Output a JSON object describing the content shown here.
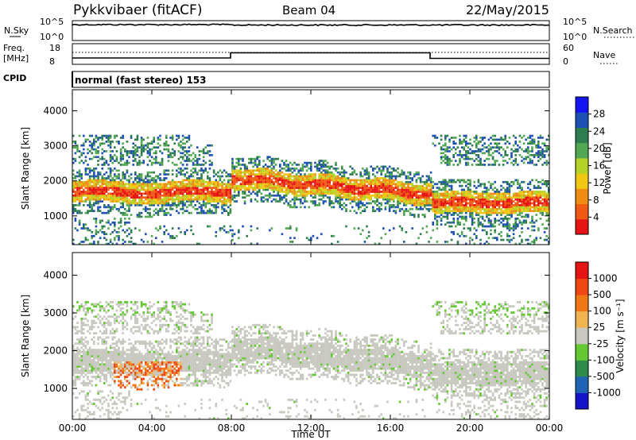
{
  "header": {
    "station": "Pykkvibaer (fitACF)",
    "beam": "Beam 04",
    "date": "22/May/2015"
  },
  "noise_panel": {
    "left_label": "N.Sky",
    "right_label": "N.Search",
    "ticks": [
      "10^5",
      "10^0"
    ],
    "right_ticks": [
      "10^5",
      "10^0"
    ]
  },
  "freq_panel": {
    "left_label_1": "Freq.",
    "left_label_2": "[MHz]",
    "left_ticks": [
      "18",
      "8"
    ],
    "right_label": "Nave",
    "right_ticks": [
      "60",
      "0"
    ]
  },
  "cpid": {
    "label": "CPID",
    "value": "normal (fast stereo) 153"
  },
  "colors": {
    "power": [
      "#1414f0",
      "#1e50b4",
      "#2e7d4f",
      "#52a852",
      "#b4d228",
      "#f0c814",
      "#f08c14",
      "#f05a14",
      "#e61414"
    ],
    "velocity": [
      "#1414c8",
      "#1e64b4",
      "#2d8a4a",
      "#64c832",
      "#c8c8c0",
      "#f0b450",
      "#f07814",
      "#f04614",
      "#e61414"
    ]
  },
  "chart_data": [
    {
      "type": "heatmap",
      "name": "power",
      "ylabel": "Slant Range [km]",
      "yticks": [
        "4000",
        "3000",
        "2000",
        "1000"
      ],
      "ylim": [
        180,
        4600
      ],
      "xlim": [
        "00:00",
        "24:00"
      ],
      "colorbar": {
        "label": "Power [dB]",
        "ticks": [
          "28",
          "24",
          "20",
          "16",
          "12",
          "8",
          "4"
        ],
        "range": [
          0,
          32
        ]
      }
    },
    {
      "type": "heatmap",
      "name": "velocity",
      "xlabel": "Time UT",
      "ylabel": "Slant Range [km]",
      "yticks": [
        "4000",
        "3000",
        "2000",
        "1000"
      ],
      "ylim": [
        180,
        4600
      ],
      "xlim": [
        "00:00",
        "24:00"
      ],
      "xticks": [
        "00:00",
        "04:00",
        "08:00",
        "12:00",
        "16:00",
        "20:00",
        "00:00"
      ],
      "colorbar": {
        "label": "Velocity [m s⁻¹]",
        "ticks": [
          "1000",
          "500",
          "100",
          "25",
          "-25",
          "-100",
          "-500",
          "-1000"
        ]
      }
    }
  ]
}
